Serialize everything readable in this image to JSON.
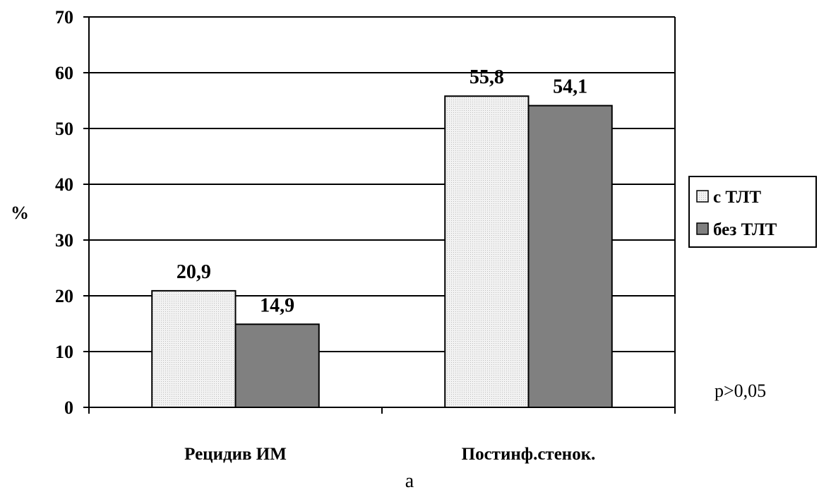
{
  "chart_data": {
    "type": "bar",
    "categories": [
      "Рецидив ИМ",
      "Постинф.стенок."
    ],
    "series": [
      {
        "name": "с ТЛТ",
        "values": [
          20.9,
          55.8
        ],
        "color": "#e6e6e6"
      },
      {
        "name": "без ТЛТ",
        "values": [
          14.9,
          54.1
        ],
        "color": "#808080"
      }
    ],
    "data_labels": [
      [
        "20,9",
        "55,8"
      ],
      [
        "14,9",
        "54,1"
      ]
    ],
    "ylabel": "%",
    "ylim": [
      0,
      70
    ],
    "yticks": [
      0,
      10,
      20,
      30,
      40,
      50,
      60,
      70
    ],
    "grid": true,
    "legend_position": "right"
  },
  "annotation": "p>0,05",
  "caption": "а"
}
